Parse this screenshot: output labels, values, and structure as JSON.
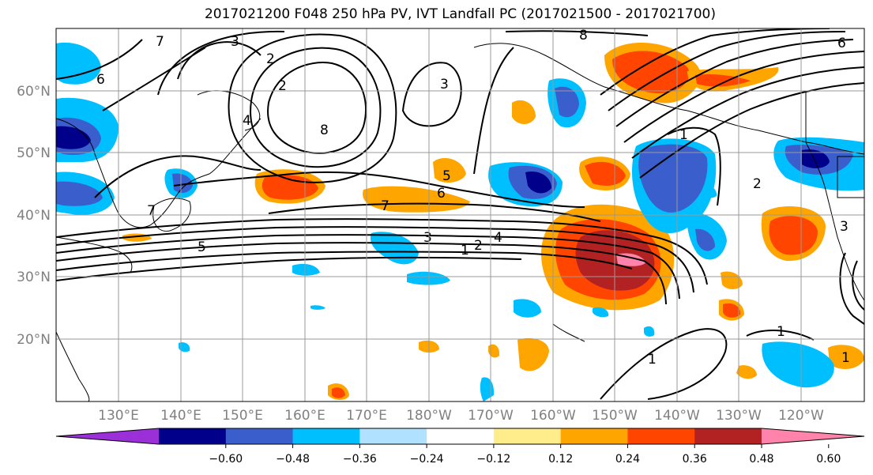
{
  "title": "2017021200 F048 250 hPa PV, IVT Landfall PC (2017021500 - 2017021700)",
  "lat_labels": [
    "60°N",
    "50°N",
    "40°N",
    "30°N",
    "20°N"
  ],
  "lon_labels": [
    "130°E",
    "140°E",
    "150°E",
    "160°E",
    "170°E",
    "180°W",
    "170°W",
    "160°W",
    "150°W",
    "140°W",
    "130°W",
    "120°W"
  ],
  "colorbar": {
    "colors": [
      "#9b30d9",
      "#00008b",
      "#3a5fcd",
      "#00bfff",
      "#b0e2ff",
      "#ffffff",
      "#ffec8b",
      "#ffa500",
      "#ff4500",
      "#b22222",
      "#ff83aa"
    ],
    "tick_labels": [
      "-0.60",
      "-0.48",
      "-0.36",
      "-0.24",
      "-0.12",
      "0.12",
      "0.24",
      "0.36",
      "0.48",
      "0.60"
    ]
  },
  "contour_labels": [
    "7",
    "3",
    "2",
    "6",
    "8",
    "3",
    "8",
    "6",
    "2",
    "1",
    "4",
    "7",
    "5",
    "6",
    "7",
    "5",
    "3",
    "2",
    "4",
    "1",
    "1",
    "2",
    "3",
    "1",
    "1"
  ]
}
